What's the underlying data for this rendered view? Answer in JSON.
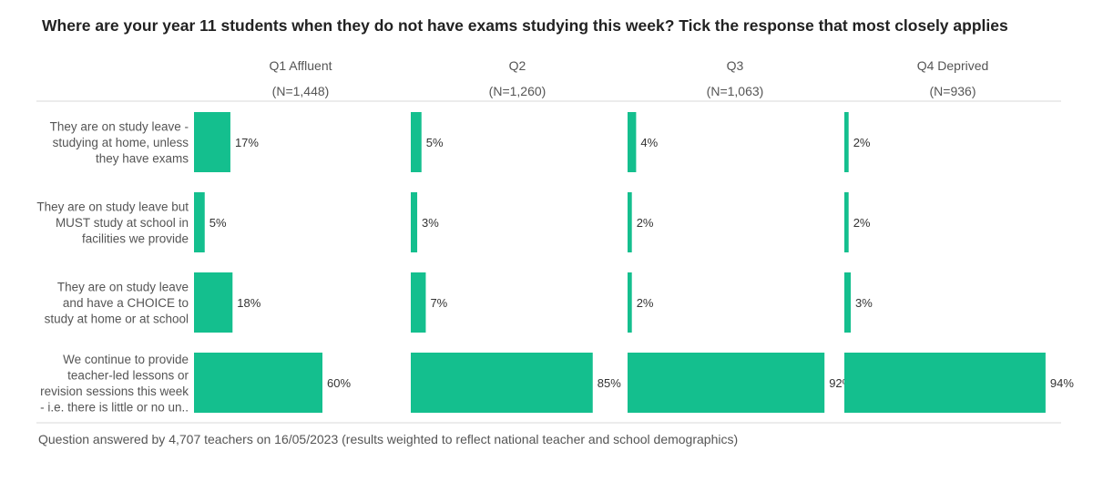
{
  "title": "Where are your year 11 students when they do not have exams studying this week? Tick the response that most closely applies",
  "footer": "Question answered by 4,707 teachers on 16/05/2023 (results weighted to reflect national teacher and school demographics)",
  "colors": {
    "bar": "#14bf8e",
    "divider": "#d9d9d9"
  },
  "chart_data": {
    "type": "bar",
    "orientation": "horizontal",
    "title": "Where are your year 11 students when they do not have exams studying this week? Tick the response that most closely applies",
    "categories": [
      [
        "They are on study leave -",
        "studying at home, unless",
        "they have exams"
      ],
      [
        "They are on study leave but",
        "MUST study at school in",
        "facilities we provide"
      ],
      [
        "They are on  study leave",
        "and have a CHOICE to",
        "study at home or at school"
      ],
      [
        "We continue to provide",
        "teacher-led lessons or",
        "revision sessions this week",
        "- i.e. there is little or no un.."
      ]
    ],
    "series": [
      {
        "name": "Q1 Affluent",
        "n": "(N=1,448)",
        "values": [
          17,
          5,
          18,
          60
        ],
        "labels": [
          "17%",
          "5%",
          "18%",
          "60%"
        ]
      },
      {
        "name": "Q2",
        "n": "(N=1,260)",
        "values": [
          5,
          3,
          7,
          85
        ],
        "labels": [
          "5%",
          "3%",
          "7%",
          "85%"
        ]
      },
      {
        "name": "Q3",
        "n": "(N=1,063)",
        "values": [
          4,
          2,
          2,
          92
        ],
        "labels": [
          "4%",
          "2%",
          "2%",
          "92%"
        ]
      },
      {
        "name": "Q4 Deprived",
        "n": "(N=936)",
        "values": [
          2,
          2,
          3,
          94
        ],
        "labels": [
          "2%",
          "2%",
          "3%",
          "94%"
        ]
      }
    ],
    "xlim": [
      0,
      100
    ],
    "grid": false,
    "legend": "none"
  }
}
